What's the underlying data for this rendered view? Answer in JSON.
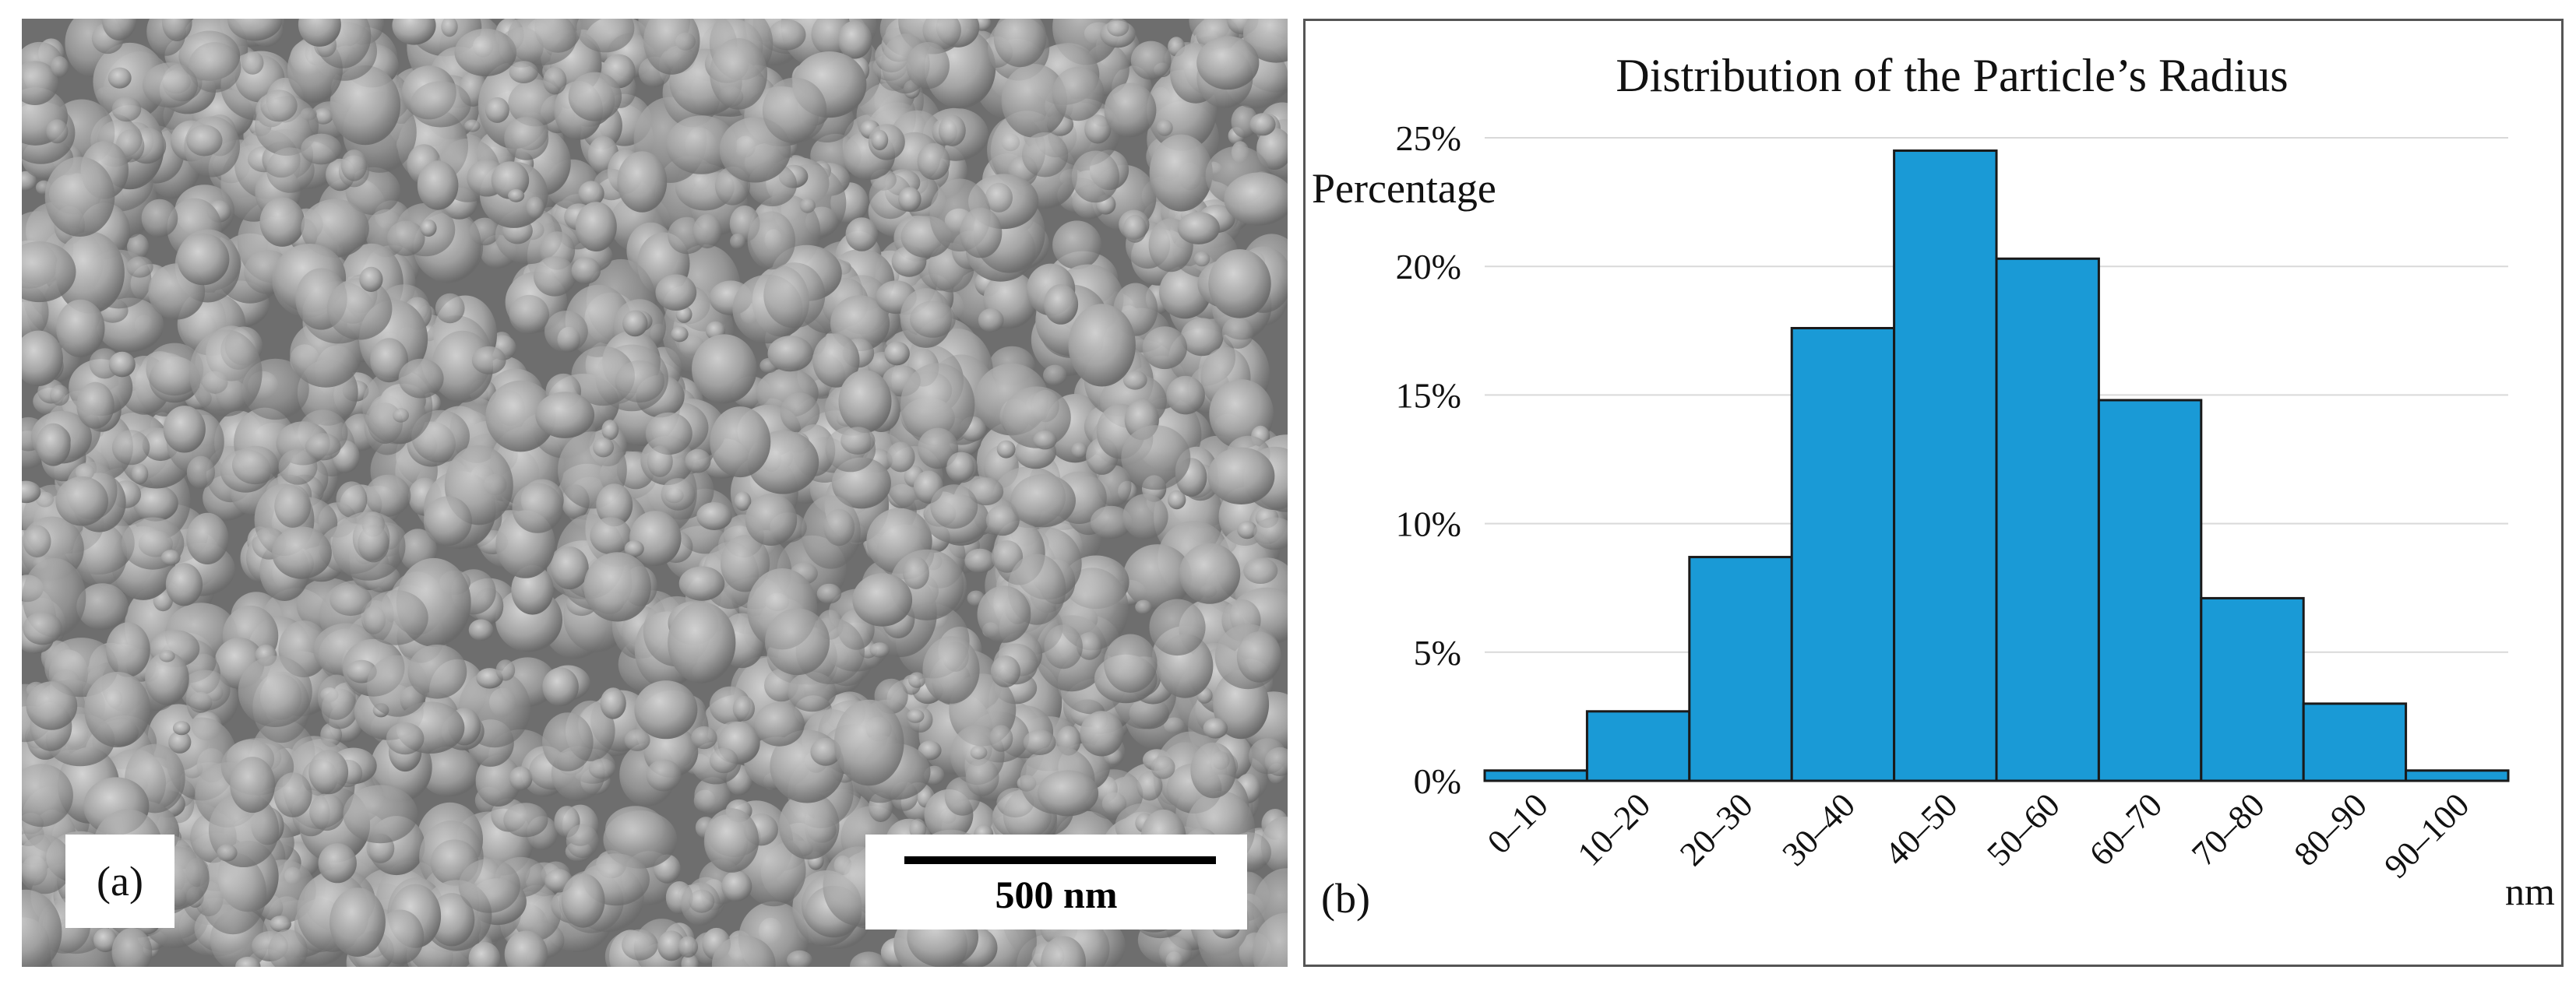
{
  "panels": {
    "a": {
      "label": "(a)",
      "scale_bar": "500 nm"
    },
    "b": {
      "label": "(b)"
    }
  },
  "chart_data": {
    "type": "bar",
    "title": "Distribution of the Particle’s Radius",
    "ylabel": "Percentage",
    "xlabel": "nm",
    "categories": [
      "0–10",
      "10–20",
      "20–30",
      "30–40",
      "40–50",
      "50–60",
      "60–70",
      "70–80",
      "80–90",
      "90–100"
    ],
    "values": [
      0.4,
      2.7,
      8.7,
      17.6,
      24.5,
      20.3,
      14.8,
      7.1,
      3.0,
      0.4
    ],
    "ylim": [
      0,
      25
    ],
    "yticks": [
      "0%",
      "5%",
      "10%",
      "15%",
      "20%",
      "25%"
    ],
    "ytick_values": [
      0,
      5,
      10,
      15,
      20,
      25
    ],
    "grid": true,
    "bar_color": "#1a9ad6"
  }
}
